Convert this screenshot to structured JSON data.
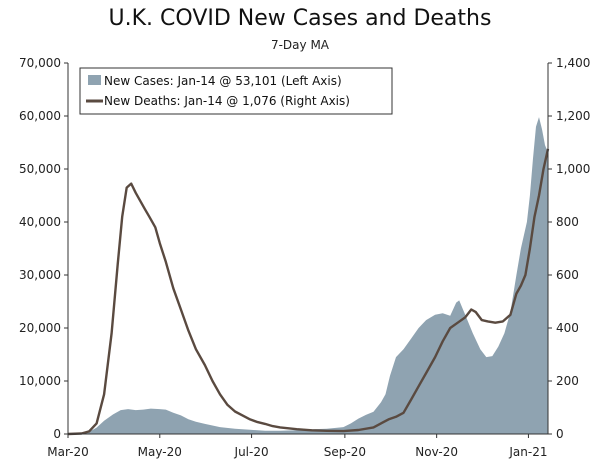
{
  "chart_data": {
    "type": "area",
    "title": "U.K. COVID New Cases and Deaths",
    "subtitle": "7-Day MA",
    "x_tick_labels": [
      "Mar-20",
      "May-20",
      "Jul-20",
      "Sep-20",
      "Nov-20",
      "Jan-21"
    ],
    "x_tick_dates": [
      "2020-03-01",
      "2020-05-01",
      "2020-07-01",
      "2020-09-01",
      "2020-11-01",
      "2021-01-01"
    ],
    "x_range": [
      "2020-03-01",
      "2021-01-14"
    ],
    "y_left_range": [
      0,
      70000
    ],
    "y_left_ticks": [
      0,
      10000,
      20000,
      30000,
      40000,
      50000,
      60000,
      70000
    ],
    "y_left_tick_labels": [
      "0",
      "10,000",
      "20,000",
      "30,000",
      "40,000",
      "50,000",
      "60,000",
      "70,000"
    ],
    "y_right_range": [
      0,
      1400
    ],
    "y_right_ticks": [
      0,
      200,
      400,
      600,
      800,
      1000,
      1200,
      1400
    ],
    "y_right_tick_labels": [
      "0",
      "200",
      "400",
      "600",
      "800",
      "1,000",
      "1,200",
      "1,400"
    ],
    "grid": false,
    "legend_position": "top-left",
    "series": [
      {
        "name": "New Cases: Jan-14 @ 53,101 (Left Axis)",
        "axis": "left",
        "style": "area",
        "color": "#8fa3b1",
        "points": [
          [
            "2020-03-01",
            0
          ],
          [
            "2020-03-10",
            100
          ],
          [
            "2020-03-15",
            400
          ],
          [
            "2020-03-20",
            1200
          ],
          [
            "2020-03-25",
            2500
          ],
          [
            "2020-03-31",
            3700
          ],
          [
            "2020-04-05",
            4500
          ],
          [
            "2020-04-10",
            4700
          ],
          [
            "2020-04-15",
            4500
          ],
          [
            "2020-04-20",
            4600
          ],
          [
            "2020-04-25",
            4800
          ],
          [
            "2020-05-01",
            4700
          ],
          [
            "2020-05-05",
            4600
          ],
          [
            "2020-05-10",
            4000
          ],
          [
            "2020-05-15",
            3500
          ],
          [
            "2020-05-20",
            2800
          ],
          [
            "2020-05-25",
            2300
          ],
          [
            "2020-05-31",
            1900
          ],
          [
            "2020-06-10",
            1300
          ],
          [
            "2020-06-20",
            1000
          ],
          [
            "2020-06-30",
            800
          ],
          [
            "2020-07-10",
            600
          ],
          [
            "2020-07-20",
            600
          ],
          [
            "2020-07-31",
            700
          ],
          [
            "2020-08-10",
            900
          ],
          [
            "2020-08-20",
            1000
          ],
          [
            "2020-08-31",
            1300
          ],
          [
            "2020-09-05",
            2000
          ],
          [
            "2020-09-10",
            2900
          ],
          [
            "2020-09-15",
            3600
          ],
          [
            "2020-09-20",
            4200
          ],
          [
            "2020-09-25",
            6000
          ],
          [
            "2020-09-28",
            7500
          ],
          [
            "2020-10-01",
            11000
          ],
          [
            "2020-10-05",
            14500
          ],
          [
            "2020-10-10",
            16000
          ],
          [
            "2020-10-15",
            18000
          ],
          [
            "2020-10-20",
            20000
          ],
          [
            "2020-10-25",
            21500
          ],
          [
            "2020-10-31",
            22500
          ],
          [
            "2020-11-05",
            22800
          ],
          [
            "2020-11-10",
            22300
          ],
          [
            "2020-11-14",
            24800
          ],
          [
            "2020-11-16",
            25200
          ],
          [
            "2020-11-20",
            22500
          ],
          [
            "2020-11-25",
            19000
          ],
          [
            "2020-11-30",
            16000
          ],
          [
            "2020-12-04",
            14500
          ],
          [
            "2020-12-08",
            14700
          ],
          [
            "2020-12-12",
            16500
          ],
          [
            "2020-12-16",
            19000
          ],
          [
            "2020-12-20",
            23000
          ],
          [
            "2020-12-24",
            30000
          ],
          [
            "2020-12-27",
            35000
          ],
          [
            "2020-12-31",
            40000
          ],
          [
            "2021-01-02",
            45000
          ],
          [
            "2021-01-04",
            52000
          ],
          [
            "2021-01-06",
            58000
          ],
          [
            "2021-01-08",
            59800
          ],
          [
            "2021-01-10",
            57500
          ],
          [
            "2021-01-12",
            54500
          ],
          [
            "2021-01-14",
            53101
          ]
        ]
      },
      {
        "name": "New Deaths: Jan-14 @ 1,076 (Right Axis)",
        "axis": "right",
        "style": "line",
        "color": "#5a4a40",
        "points": [
          [
            "2020-03-01",
            0
          ],
          [
            "2020-03-10",
            2
          ],
          [
            "2020-03-15",
            10
          ],
          [
            "2020-03-20",
            40
          ],
          [
            "2020-03-25",
            150
          ],
          [
            "2020-03-30",
            380
          ],
          [
            "2020-04-03",
            640
          ],
          [
            "2020-04-06",
            820
          ],
          [
            "2020-04-09",
            930
          ],
          [
            "2020-04-12",
            945
          ],
          [
            "2020-04-15",
            910
          ],
          [
            "2020-04-18",
            880
          ],
          [
            "2020-04-21",
            850
          ],
          [
            "2020-04-24",
            820
          ],
          [
            "2020-04-28",
            780
          ],
          [
            "2020-05-01",
            720
          ],
          [
            "2020-05-05",
            650
          ],
          [
            "2020-05-10",
            550
          ],
          [
            "2020-05-15",
            470
          ],
          [
            "2020-05-20",
            390
          ],
          [
            "2020-05-25",
            320
          ],
          [
            "2020-05-31",
            260
          ],
          [
            "2020-06-05",
            200
          ],
          [
            "2020-06-10",
            150
          ],
          [
            "2020-06-15",
            110
          ],
          [
            "2020-06-20",
            85
          ],
          [
            "2020-06-25",
            70
          ],
          [
            "2020-06-30",
            55
          ],
          [
            "2020-07-05",
            45
          ],
          [
            "2020-07-10",
            38
          ],
          [
            "2020-07-15",
            30
          ],
          [
            "2020-07-20",
            25
          ],
          [
            "2020-07-31",
            18
          ],
          [
            "2020-08-10",
            14
          ],
          [
            "2020-08-20",
            12
          ],
          [
            "2020-08-31",
            11
          ],
          [
            "2020-09-10",
            15
          ],
          [
            "2020-09-20",
            25
          ],
          [
            "2020-09-30",
            55
          ],
          [
            "2020-10-05",
            65
          ],
          [
            "2020-10-10",
            80
          ],
          [
            "2020-10-15",
            130
          ],
          [
            "2020-10-20",
            180
          ],
          [
            "2020-10-25",
            230
          ],
          [
            "2020-10-31",
            290
          ],
          [
            "2020-11-05",
            350
          ],
          [
            "2020-11-10",
            400
          ],
          [
            "2020-11-15",
            420
          ],
          [
            "2020-11-20",
            440
          ],
          [
            "2020-11-24",
            470
          ],
          [
            "2020-11-27",
            460
          ],
          [
            "2020-12-01",
            430
          ],
          [
            "2020-12-05",
            425
          ],
          [
            "2020-12-10",
            420
          ],
          [
            "2020-12-15",
            425
          ],
          [
            "2020-12-20",
            450
          ],
          [
            "2020-12-24",
            530
          ],
          [
            "2020-12-27",
            560
          ],
          [
            "2020-12-30",
            600
          ],
          [
            "2021-01-02",
            700
          ],
          [
            "2021-01-05",
            820
          ],
          [
            "2021-01-08",
            900
          ],
          [
            "2021-01-11",
            1000
          ],
          [
            "2021-01-14",
            1076
          ]
        ]
      }
    ]
  }
}
